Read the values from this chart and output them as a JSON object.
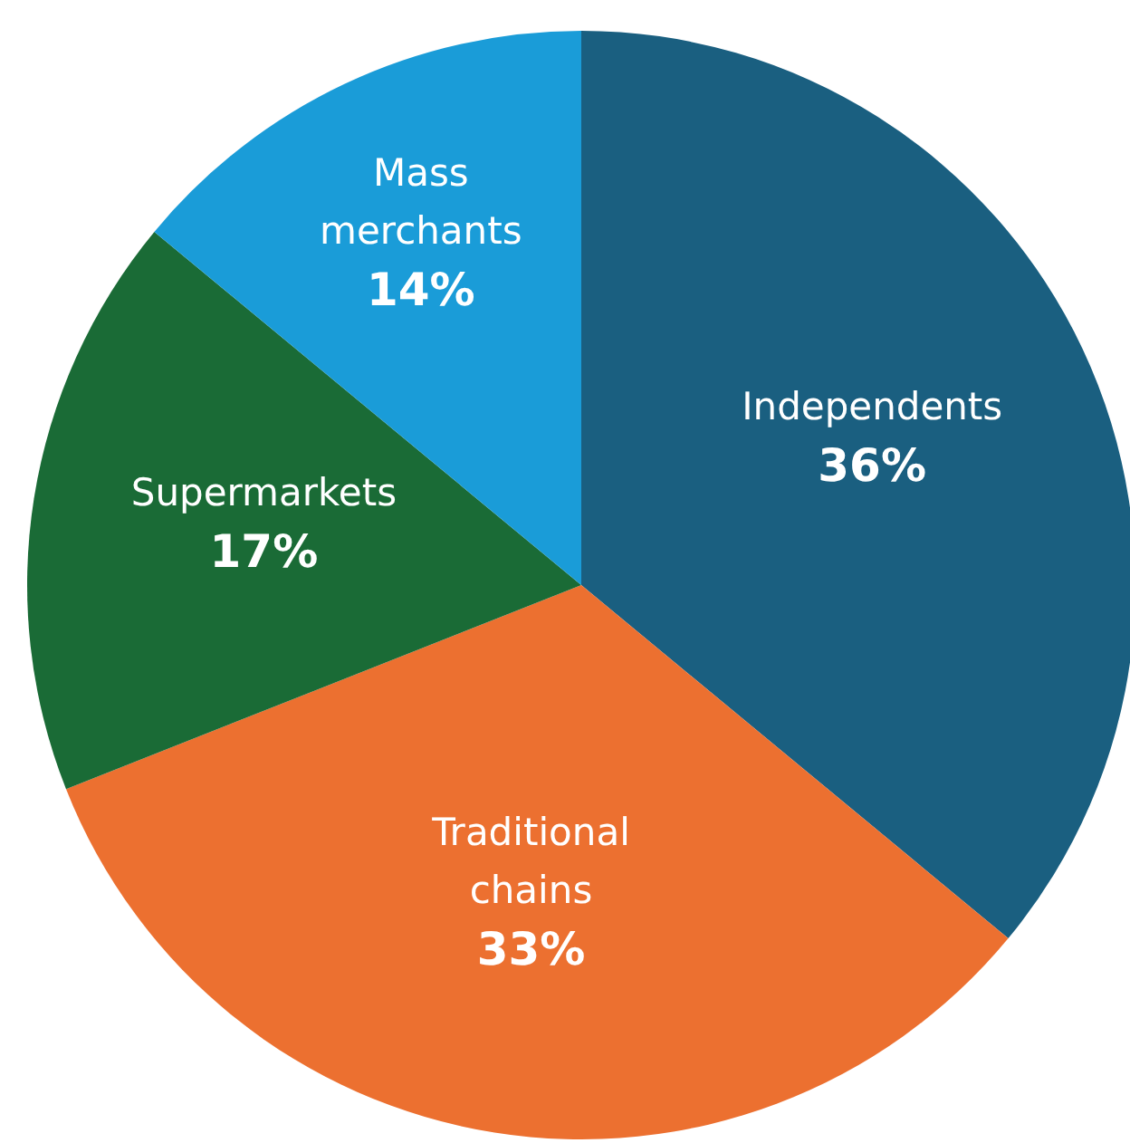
{
  "chart_data": {
    "type": "pie",
    "categories": [
      "Independents",
      "Traditional chains",
      "Supermarkets",
      "Mass merchants"
    ],
    "values": [
      36,
      33,
      17,
      14
    ],
    "colors": [
      "#1a5f80",
      "#ec7030",
      "#1a6b36",
      "#1a9cd8"
    ],
    "value_labels": [
      "36%",
      "33%",
      "17%",
      "14%"
    ]
  }
}
